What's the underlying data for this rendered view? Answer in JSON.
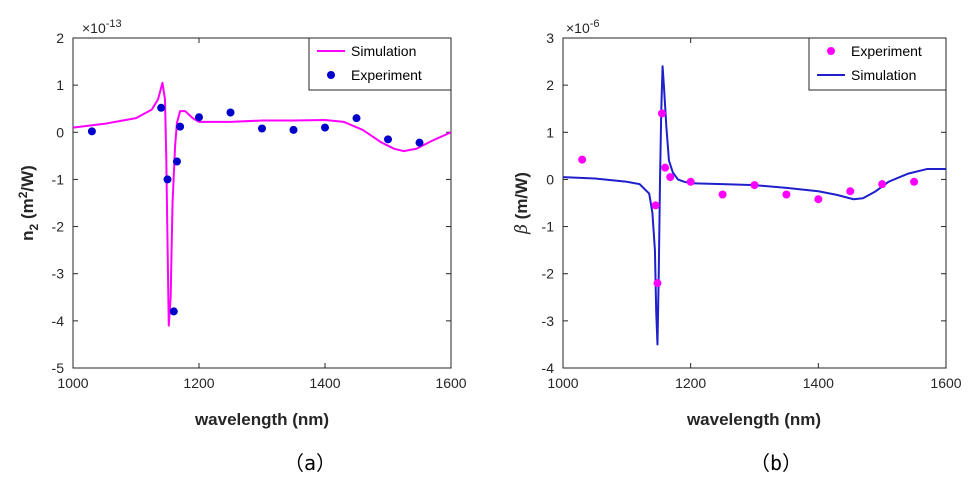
{
  "chart_data": [
    {
      "id": "a",
      "type": "line",
      "caption": "（a）",
      "xlabel": "wavelength (nm)",
      "ylabel_parts": [
        "n",
        "2",
        " (m",
        "2",
        "/W)"
      ],
      "y_multiplier": "×10-13",
      "y_multiplier_parts": [
        "×10",
        "-13"
      ],
      "xlim": [
        1000,
        1600
      ],
      "ylim": [
        -5,
        2
      ],
      "xticks": [
        1000,
        1200,
        1400,
        1600
      ],
      "yticks": [
        2,
        1,
        0,
        -1,
        -2,
        -3,
        -4,
        -5
      ],
      "grid": false,
      "legend_position": "top-right",
      "legend": [
        "Simulation",
        "Experiment"
      ],
      "colors": {
        "Simulation": "#ff00ff",
        "Experiment": "#0000cc"
      },
      "series": [
        {
          "name": "Simulation",
          "kind": "line",
          "x": [
            1000,
            1050,
            1100,
            1125,
            1135,
            1142,
            1146,
            1148,
            1150,
            1152,
            1155,
            1158,
            1162,
            1165,
            1170,
            1178,
            1190,
            1200,
            1250,
            1300,
            1350,
            1400,
            1430,
            1460,
            1490,
            1510,
            1525,
            1545,
            1570,
            1600
          ],
          "y": [
            0.1,
            0.18,
            0.3,
            0.48,
            0.7,
            1.05,
            0.7,
            -0.5,
            -2.3,
            -4.1,
            -3.5,
            -1.5,
            -0.3,
            0.2,
            0.45,
            0.45,
            0.3,
            0.22,
            0.22,
            0.25,
            0.25,
            0.26,
            0.22,
            0.05,
            -0.22,
            -0.35,
            -0.4,
            -0.35,
            -0.18,
            0.0
          ]
        },
        {
          "name": "Experiment",
          "kind": "scatter",
          "x": [
            1030,
            1140,
            1150,
            1160,
            1165,
            1170,
            1200,
            1250,
            1300,
            1350,
            1400,
            1450,
            1500,
            1550
          ],
          "y": [
            0.02,
            0.52,
            -1.0,
            -3.8,
            -0.62,
            0.12,
            0.32,
            0.42,
            0.08,
            0.05,
            0.1,
            0.3,
            -0.15,
            -0.22
          ]
        }
      ]
    },
    {
      "id": "b",
      "type": "line",
      "caption": "（b）",
      "xlabel": "wavelength (nm)",
      "ylabel_parts": [
        "β",
        " (m/W)"
      ],
      "y_multiplier": "×10-6",
      "y_multiplier_parts": [
        "×10",
        "-6"
      ],
      "xlim": [
        1000,
        1600
      ],
      "ylim": [
        -4,
        3
      ],
      "xticks": [
        1000,
        1200,
        1400,
        1600
      ],
      "yticks": [
        3,
        2,
        1,
        0,
        -1,
        -2,
        -3,
        -4
      ],
      "grid": false,
      "legend_position": "top-right",
      "legend": [
        "Experiment",
        "Simulation"
      ],
      "colors": {
        "Simulation": "#1f1fcc",
        "Experiment": "#ff00ff"
      },
      "series": [
        {
          "name": "Simulation",
          "kind": "line",
          "x": [
            1000,
            1050,
            1100,
            1120,
            1135,
            1140,
            1144,
            1146,
            1148,
            1150,
            1152,
            1154,
            1156,
            1158,
            1162,
            1166,
            1172,
            1180,
            1190,
            1200,
            1250,
            1300,
            1350,
            1400,
            1430,
            1455,
            1470,
            1490,
            1510,
            1540,
            1570,
            1600
          ],
          "y": [
            0.05,
            0.02,
            -0.05,
            -0.1,
            -0.3,
            -0.7,
            -1.5,
            -2.8,
            -3.5,
            -2.0,
            0.0,
            1.5,
            2.4,
            2.0,
            1.1,
            0.4,
            0.15,
            0.0,
            -0.05,
            -0.08,
            -0.1,
            -0.12,
            -0.18,
            -0.25,
            -0.33,
            -0.42,
            -0.4,
            -0.25,
            -0.05,
            0.12,
            0.22,
            0.22
          ]
        },
        {
          "name": "Experiment",
          "kind": "scatter",
          "x": [
            1030,
            1145,
            1148,
            1155,
            1160,
            1168,
            1200,
            1250,
            1300,
            1350,
            1400,
            1450,
            1500,
            1550
          ],
          "y": [
            0.42,
            -0.55,
            -2.2,
            1.4,
            0.25,
            0.05,
            -0.05,
            -0.32,
            -0.12,
            -0.32,
            -0.42,
            -0.25,
            -0.1,
            -0.05
          ]
        }
      ]
    }
  ]
}
